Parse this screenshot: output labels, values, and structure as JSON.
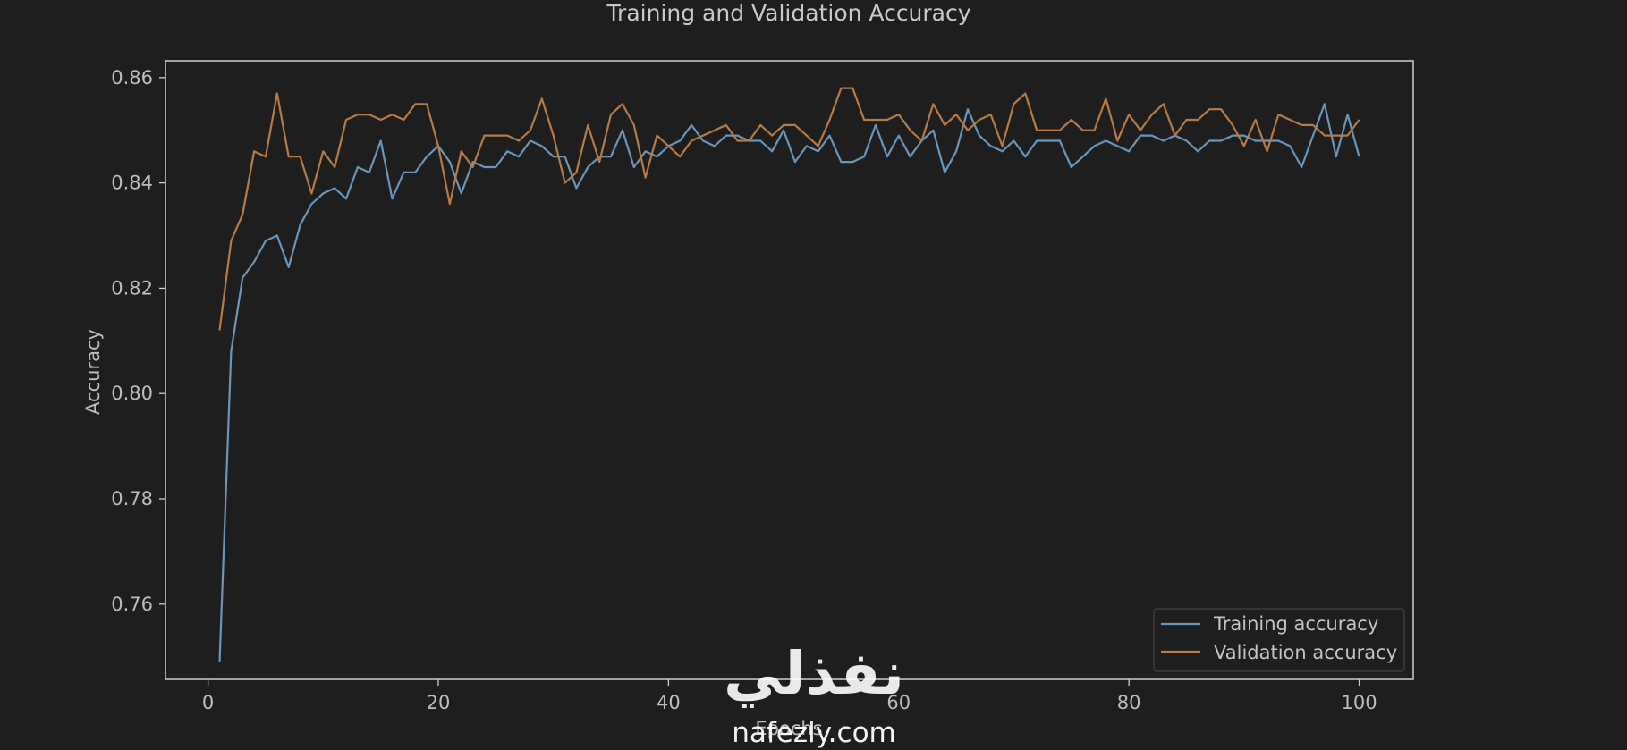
{
  "colors": {
    "background": "#1e1e1e",
    "frame": "#cfcfcf",
    "text": "#bdbdbd",
    "training": "#6a95ba",
    "validation": "#b87a45"
  },
  "watermark": {
    "arabic": "نفذلي",
    "latin": "nafezly.com"
  },
  "chart_data": {
    "type": "line",
    "title": "Training and Validation Accuracy",
    "xlabel": "Epochs",
    "ylabel": "Accuracy",
    "xlim": [
      -3.7,
      104.7
    ],
    "ylim": [
      0.7457,
      0.8632
    ],
    "xticks": [
      0,
      20,
      40,
      60,
      80,
      100
    ],
    "yticks": [
      0.76,
      0.78,
      0.8,
      0.82,
      0.84,
      0.86
    ],
    "ytick_labels": [
      "0.76",
      "0.78",
      "0.80",
      "0.82",
      "0.84",
      "0.86"
    ],
    "grid": false,
    "legend": "lower right",
    "x": [
      1,
      2,
      3,
      4,
      5,
      6,
      7,
      8,
      9,
      10,
      11,
      12,
      13,
      14,
      15,
      16,
      17,
      18,
      19,
      20,
      21,
      22,
      23,
      24,
      25,
      26,
      27,
      28,
      29,
      30,
      31,
      32,
      33,
      34,
      35,
      36,
      37,
      38,
      39,
      40,
      41,
      42,
      43,
      44,
      45,
      46,
      47,
      48,
      49,
      50,
      51,
      52,
      53,
      54,
      55,
      56,
      57,
      58,
      59,
      60,
      61,
      62,
      63,
      64,
      65,
      66,
      67,
      68,
      69,
      70,
      71,
      72,
      73,
      74,
      75,
      76,
      77,
      78,
      79,
      80,
      81,
      82,
      83,
      84,
      85,
      86,
      87,
      88,
      89,
      90,
      91,
      92,
      93,
      94,
      95,
      96,
      97,
      98,
      99,
      100
    ],
    "series": [
      {
        "name": "Training accuracy",
        "values": [
          0.749,
          0.808,
          0.822,
          0.825,
          0.829,
          0.83,
          0.824,
          0.832,
          0.836,
          0.838,
          0.839,
          0.837,
          0.843,
          0.842,
          0.848,
          0.837,
          0.842,
          0.842,
          0.845,
          0.847,
          0.844,
          0.838,
          0.844,
          0.843,
          0.843,
          0.846,
          0.845,
          0.848,
          0.847,
          0.845,
          0.845,
          0.839,
          0.843,
          0.845,
          0.845,
          0.85,
          0.843,
          0.846,
          0.845,
          0.847,
          0.848,
          0.851,
          0.848,
          0.847,
          0.849,
          0.849,
          0.848,
          0.848,
          0.846,
          0.85,
          0.844,
          0.847,
          0.846,
          0.849,
          0.844,
          0.844,
          0.845,
          0.851,
          0.845,
          0.849,
          0.845,
          0.848,
          0.85,
          0.842,
          0.846,
          0.854,
          0.849,
          0.847,
          0.846,
          0.848,
          0.845,
          0.848,
          0.848,
          0.848,
          0.843,
          0.845,
          0.847,
          0.848,
          0.847,
          0.846,
          0.849,
          0.849,
          0.848,
          0.849,
          0.848,
          0.846,
          0.848,
          0.848,
          0.849,
          0.849,
          0.848,
          0.848,
          0.848,
          0.847,
          0.843,
          0.849,
          0.855,
          0.845,
          0.853,
          0.845
        ]
      },
      {
        "name": "Validation accuracy",
        "values": [
          0.812,
          0.829,
          0.834,
          0.846,
          0.845,
          0.857,
          0.845,
          0.845,
          0.838,
          0.846,
          0.843,
          0.852,
          0.853,
          0.853,
          0.852,
          0.853,
          0.852,
          0.855,
          0.855,
          0.847,
          0.836,
          0.846,
          0.843,
          0.849,
          0.849,
          0.849,
          0.848,
          0.85,
          0.856,
          0.849,
          0.84,
          0.842,
          0.851,
          0.844,
          0.853,
          0.855,
          0.851,
          0.841,
          0.849,
          0.847,
          0.845,
          0.848,
          0.849,
          0.85,
          0.851,
          0.848,
          0.848,
          0.851,
          0.849,
          0.851,
          0.851,
          0.849,
          0.847,
          0.852,
          0.858,
          0.858,
          0.852,
          0.852,
          0.852,
          0.853,
          0.85,
          0.848,
          0.855,
          0.851,
          0.853,
          0.85,
          0.852,
          0.853,
          0.847,
          0.855,
          0.857,
          0.85,
          0.85,
          0.85,
          0.852,
          0.85,
          0.85,
          0.856,
          0.848,
          0.853,
          0.85,
          0.853,
          0.855,
          0.849,
          0.852,
          0.852,
          0.854,
          0.854,
          0.851,
          0.847,
          0.852,
          0.846,
          0.853,
          0.852,
          0.851,
          0.851,
          0.849,
          0.849,
          0.849,
          0.852
        ]
      }
    ]
  }
}
